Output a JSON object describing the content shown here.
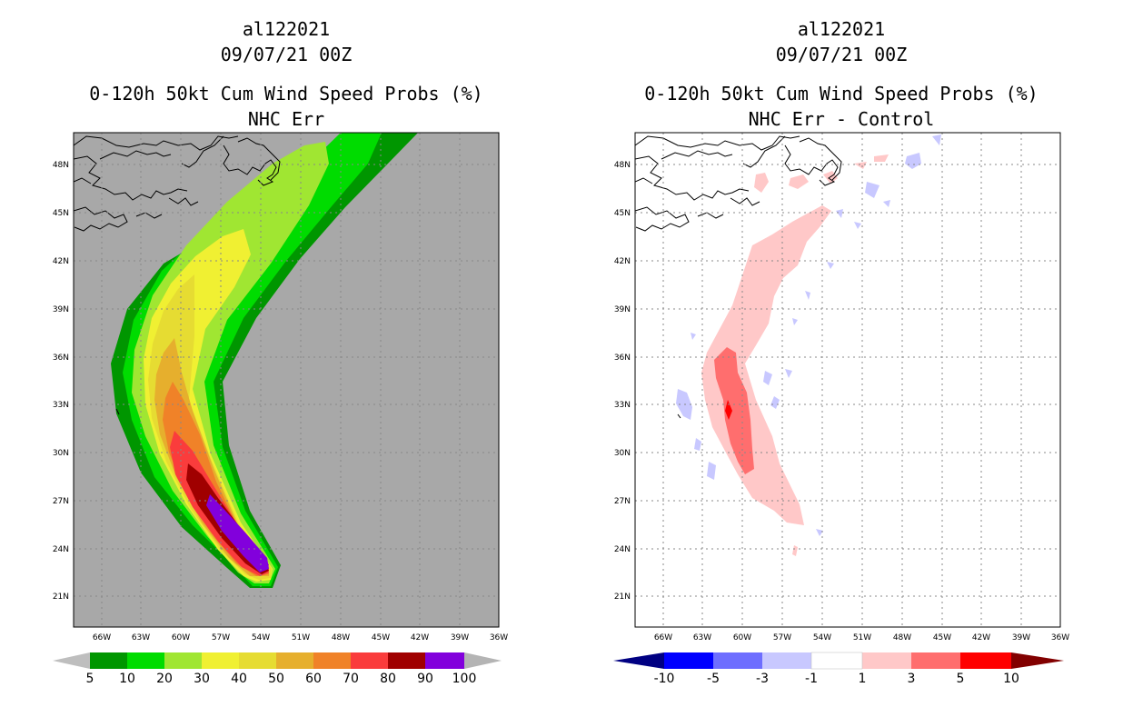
{
  "left": {
    "storm": "al122021",
    "datetime": "09/07/21 00Z",
    "product": "0-120h 50kt Cum Wind Speed Probs (%)",
    "subtitle": "NHC Err",
    "colorbar": {
      "labels": [
        "5",
        "10",
        "20",
        "30",
        "40",
        "50",
        "60",
        "70",
        "80",
        "90",
        "100"
      ],
      "colors": [
        "#bebebe",
        "#009600",
        "#00dc00",
        "#a0e632",
        "#f0f032",
        "#e6dc32",
        "#e6af2d",
        "#f08228",
        "#fa3c3c",
        "#a00000",
        "#8200dc",
        "#b4b4b4"
      ]
    }
  },
  "right": {
    "storm": "al122021",
    "datetime": "09/07/21 00Z",
    "product": "0-120h 50kt Cum Wind Speed Probs (%)",
    "subtitle": "NHC Err - Control",
    "colorbar": {
      "labels": [
        "-10",
        "-5",
        "-3",
        "-1",
        "1",
        "3",
        "5",
        "10"
      ],
      "colors": [
        "#000082",
        "#0000ff",
        "#6e6eff",
        "#c8c8ff",
        "#ffffff",
        "#ffc8c8",
        "#ff6e6e",
        "#ff0000",
        "#820000"
      ]
    }
  },
  "axes": {
    "lon_labels": [
      "66W",
      "63W",
      "60W",
      "57W",
      "54W",
      "51W",
      "48W",
      "45W",
      "42W",
      "39W",
      "36W"
    ],
    "lat_labels": [
      "48N",
      "45N",
      "42N",
      "39N",
      "36N",
      "33N",
      "30N",
      "27N",
      "24N",
      "21N"
    ]
  }
}
